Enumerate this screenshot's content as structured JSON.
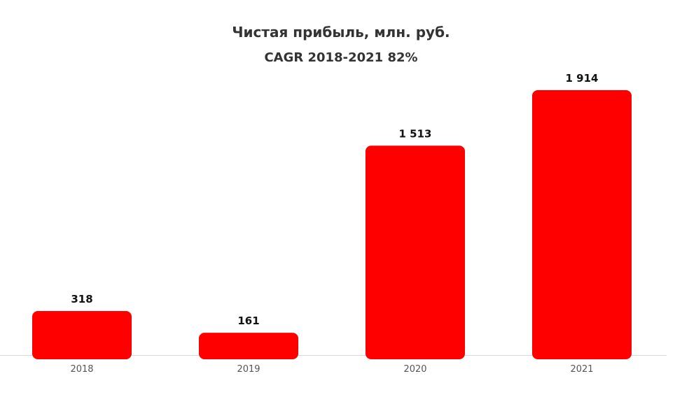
{
  "chart_data": {
    "type": "bar",
    "title": "Чистая прибыль, млн. руб.",
    "subtitle": "CAGR 2018-2021 82%",
    "categories": [
      "2018",
      "2019",
      "2020",
      "2021"
    ],
    "values": [
      318,
      161,
      1513,
      1914
    ],
    "value_labels": [
      "318",
      "161",
      "1 513",
      "1 914"
    ],
    "xlabel": "",
    "ylabel": "",
    "ylim": [
      0,
      2000
    ],
    "grid": false,
    "legend": "none",
    "bar_color": "#ff0000",
    "axis_color": "#d9d9d9"
  }
}
